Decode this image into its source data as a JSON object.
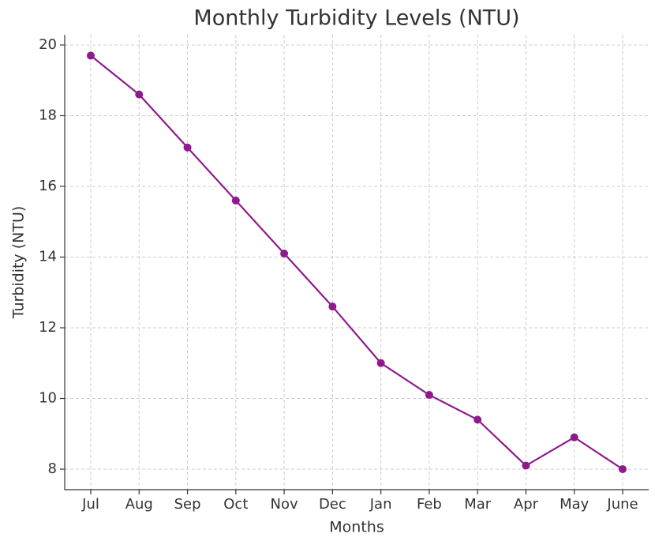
{
  "chart_data": {
    "type": "line",
    "title": "Monthly Turbidity Levels (NTU)",
    "x_label": "Months",
    "y_label": "Turbidity (NTU)",
    "categories": [
      "Jul",
      "Aug",
      "Sep",
      "Oct",
      "Nov",
      "Dec",
      "Jan",
      "Feb",
      "Mar",
      "Apr",
      "May",
      "June"
    ],
    "series": [
      {
        "name": "Turbidity",
        "color": "#8e1a8e",
        "values": [
          19.7,
          18.6,
          17.1,
          15.6,
          14.1,
          12.6,
          11.0,
          10.1,
          9.4,
          8.1,
          8.9,
          8.0
        ]
      }
    ],
    "ylim": [
      7.42,
      20.29
    ],
    "yticks": [
      8,
      10,
      12,
      14,
      16,
      18,
      20
    ],
    "grid": true
  }
}
